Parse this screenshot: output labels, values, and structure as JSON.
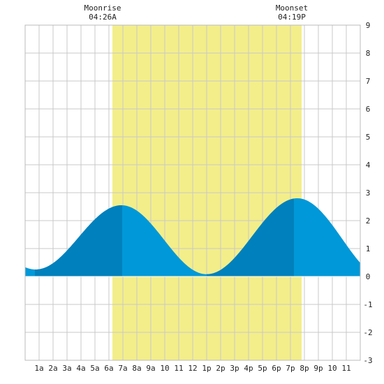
{
  "chart_data": {
    "type": "area",
    "title": "",
    "xlabel": "",
    "ylabel": "",
    "xlim": [
      0,
      24
    ],
    "ylim": [
      -3,
      9
    ],
    "grid": true,
    "x_tick_labels": [
      {
        "x": 1,
        "label": "1a"
      },
      {
        "x": 2,
        "label": "2a"
      },
      {
        "x": 3,
        "label": "3a"
      },
      {
        "x": 4,
        "label": "4a"
      },
      {
        "x": 5,
        "label": "5a"
      },
      {
        "x": 6,
        "label": "6a"
      },
      {
        "x": 7,
        "label": "7a"
      },
      {
        "x": 8,
        "label": "8a"
      },
      {
        "x": 9,
        "label": "9a"
      },
      {
        "x": 10,
        "label": "10"
      },
      {
        "x": 11,
        "label": "11"
      },
      {
        "x": 12,
        "label": "12"
      },
      {
        "x": 13,
        "label": "1p"
      },
      {
        "x": 14,
        "label": "2p"
      },
      {
        "x": 15,
        "label": "3p"
      },
      {
        "x": 16,
        "label": "4p"
      },
      {
        "x": 17,
        "label": "5p"
      },
      {
        "x": 18,
        "label": "6p"
      },
      {
        "x": 19,
        "label": "7p"
      },
      {
        "x": 20,
        "label": "8p"
      },
      {
        "x": 21,
        "label": "9p"
      },
      {
        "x": 22,
        "label": "10"
      },
      {
        "x": 23,
        "label": "11"
      }
    ],
    "y_ticks": [
      -3,
      -2,
      -1,
      0,
      1,
      2,
      3,
      4,
      5,
      6,
      7,
      8,
      9
    ],
    "extremes": [
      {
        "x": 0.75,
        "y": 0.25
      },
      {
        "x": 6.9,
        "y": 2.55
      },
      {
        "x": 13.0,
        "y": 0.08
      },
      {
        "x": 19.5,
        "y": 2.8
      },
      {
        "x": 25.9,
        "y": -0.1
      }
    ],
    "series_samples": [
      {
        "x": 0,
        "y": 0.3
      },
      {
        "x": 1,
        "y": 0.27
      },
      {
        "x": 2,
        "y": 0.5
      },
      {
        "x": 3,
        "y": 0.95
      },
      {
        "x": 4,
        "y": 1.5
      },
      {
        "x": 5,
        "y": 2.05
      },
      {
        "x": 6,
        "y": 2.42
      },
      {
        "x": 7,
        "y": 2.55
      },
      {
        "x": 8,
        "y": 2.35
      },
      {
        "x": 9,
        "y": 1.85
      },
      {
        "x": 10,
        "y": 1.2
      },
      {
        "x": 11,
        "y": 0.6
      },
      {
        "x": 12,
        "y": 0.22
      },
      {
        "x": 13,
        "y": 0.08
      },
      {
        "x": 14,
        "y": 0.27
      },
      {
        "x": 15,
        "y": 0.78
      },
      {
        "x": 16,
        "y": 1.45
      },
      {
        "x": 17,
        "y": 2.12
      },
      {
        "x": 18,
        "y": 2.6
      },
      {
        "x": 19,
        "y": 2.8
      },
      {
        "x": 20,
        "y": 2.68
      },
      {
        "x": 21,
        "y": 2.2
      },
      {
        "x": 22,
        "y": 1.55
      },
      {
        "x": 23,
        "y": 0.9
      },
      {
        "x": 24,
        "y": 0.35
      }
    ],
    "highlight_band": {
      "x_start": 6.25,
      "x_end": 19.8
    },
    "dark_segments": [
      {
        "x_start": 0.7,
        "x_end": 6.95
      },
      {
        "x_start": 13.0,
        "x_end": 19.25
      }
    ],
    "annotations": [
      {
        "x": 6.25,
        "title": "Moonrise",
        "time": "04:26A"
      },
      {
        "x": 19.8,
        "title": "Moonset",
        "time": "04:19P"
      }
    ],
    "colors": {
      "band": "#f3ee8a",
      "fill": "#0098d8",
      "fill_dark": "#0080bc",
      "grid": "#c8c8c8",
      "zero_line": "#ffffff",
      "text": "#222222"
    }
  }
}
